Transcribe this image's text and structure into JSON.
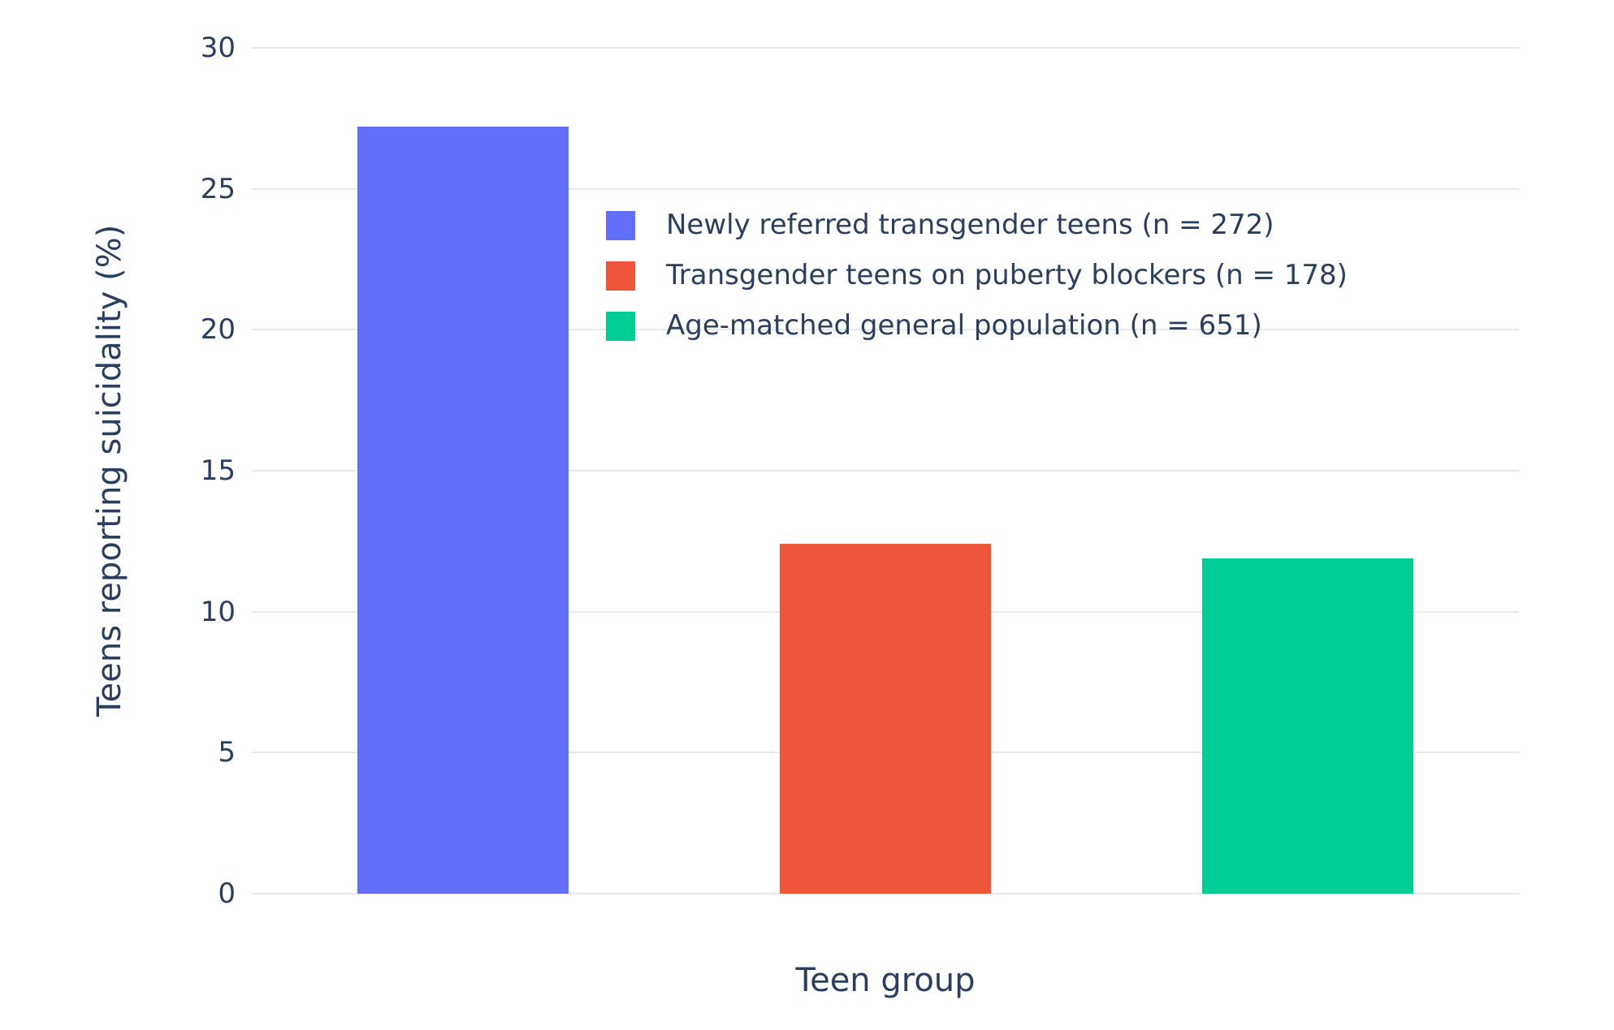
{
  "chart_data": {
    "type": "bar",
    "title": "",
    "xlabel": "Teen group",
    "ylabel": "Teens reporting suicidality (%)",
    "ylim": [
      0,
      30
    ],
    "yticks": [
      0,
      5,
      10,
      15,
      20,
      25,
      30
    ],
    "grid": true,
    "legend_position": "inside-upper-center",
    "background_color": "#ffffff",
    "categories": [
      "Newly referred transgender teens",
      "Transgender teens on puberty blockers",
      "Age-matched general population"
    ],
    "series": [
      {
        "name": "Newly referred transgender teens (n = 272)",
        "value": 27.2,
        "color": "#636EFA"
      },
      {
        "name": "Transgender teens on puberty blockers (n = 178)",
        "value": 12.4,
        "color": "#EF553B"
      },
      {
        "name": "Age-matched general population (n = 651)",
        "value": 11.9,
        "color": "#00CC96"
      }
    ]
  }
}
